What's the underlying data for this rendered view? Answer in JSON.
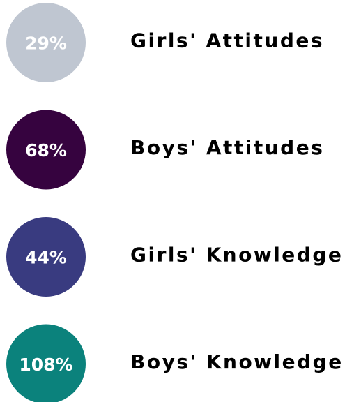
{
  "items": [
    {
      "stat": "29%",
      "label": "Girls' Attitudes",
      "color": "#bfc6d1"
    },
    {
      "stat": "68%",
      "label": "Boys' Attitudes",
      "color": "#36033f"
    },
    {
      "stat": "44%",
      "label": "Girls' Knowledge",
      "color": "#393b80"
    },
    {
      "stat": "108%",
      "label": "Boys' Knowledge",
      "color": "#0b827c"
    }
  ]
}
